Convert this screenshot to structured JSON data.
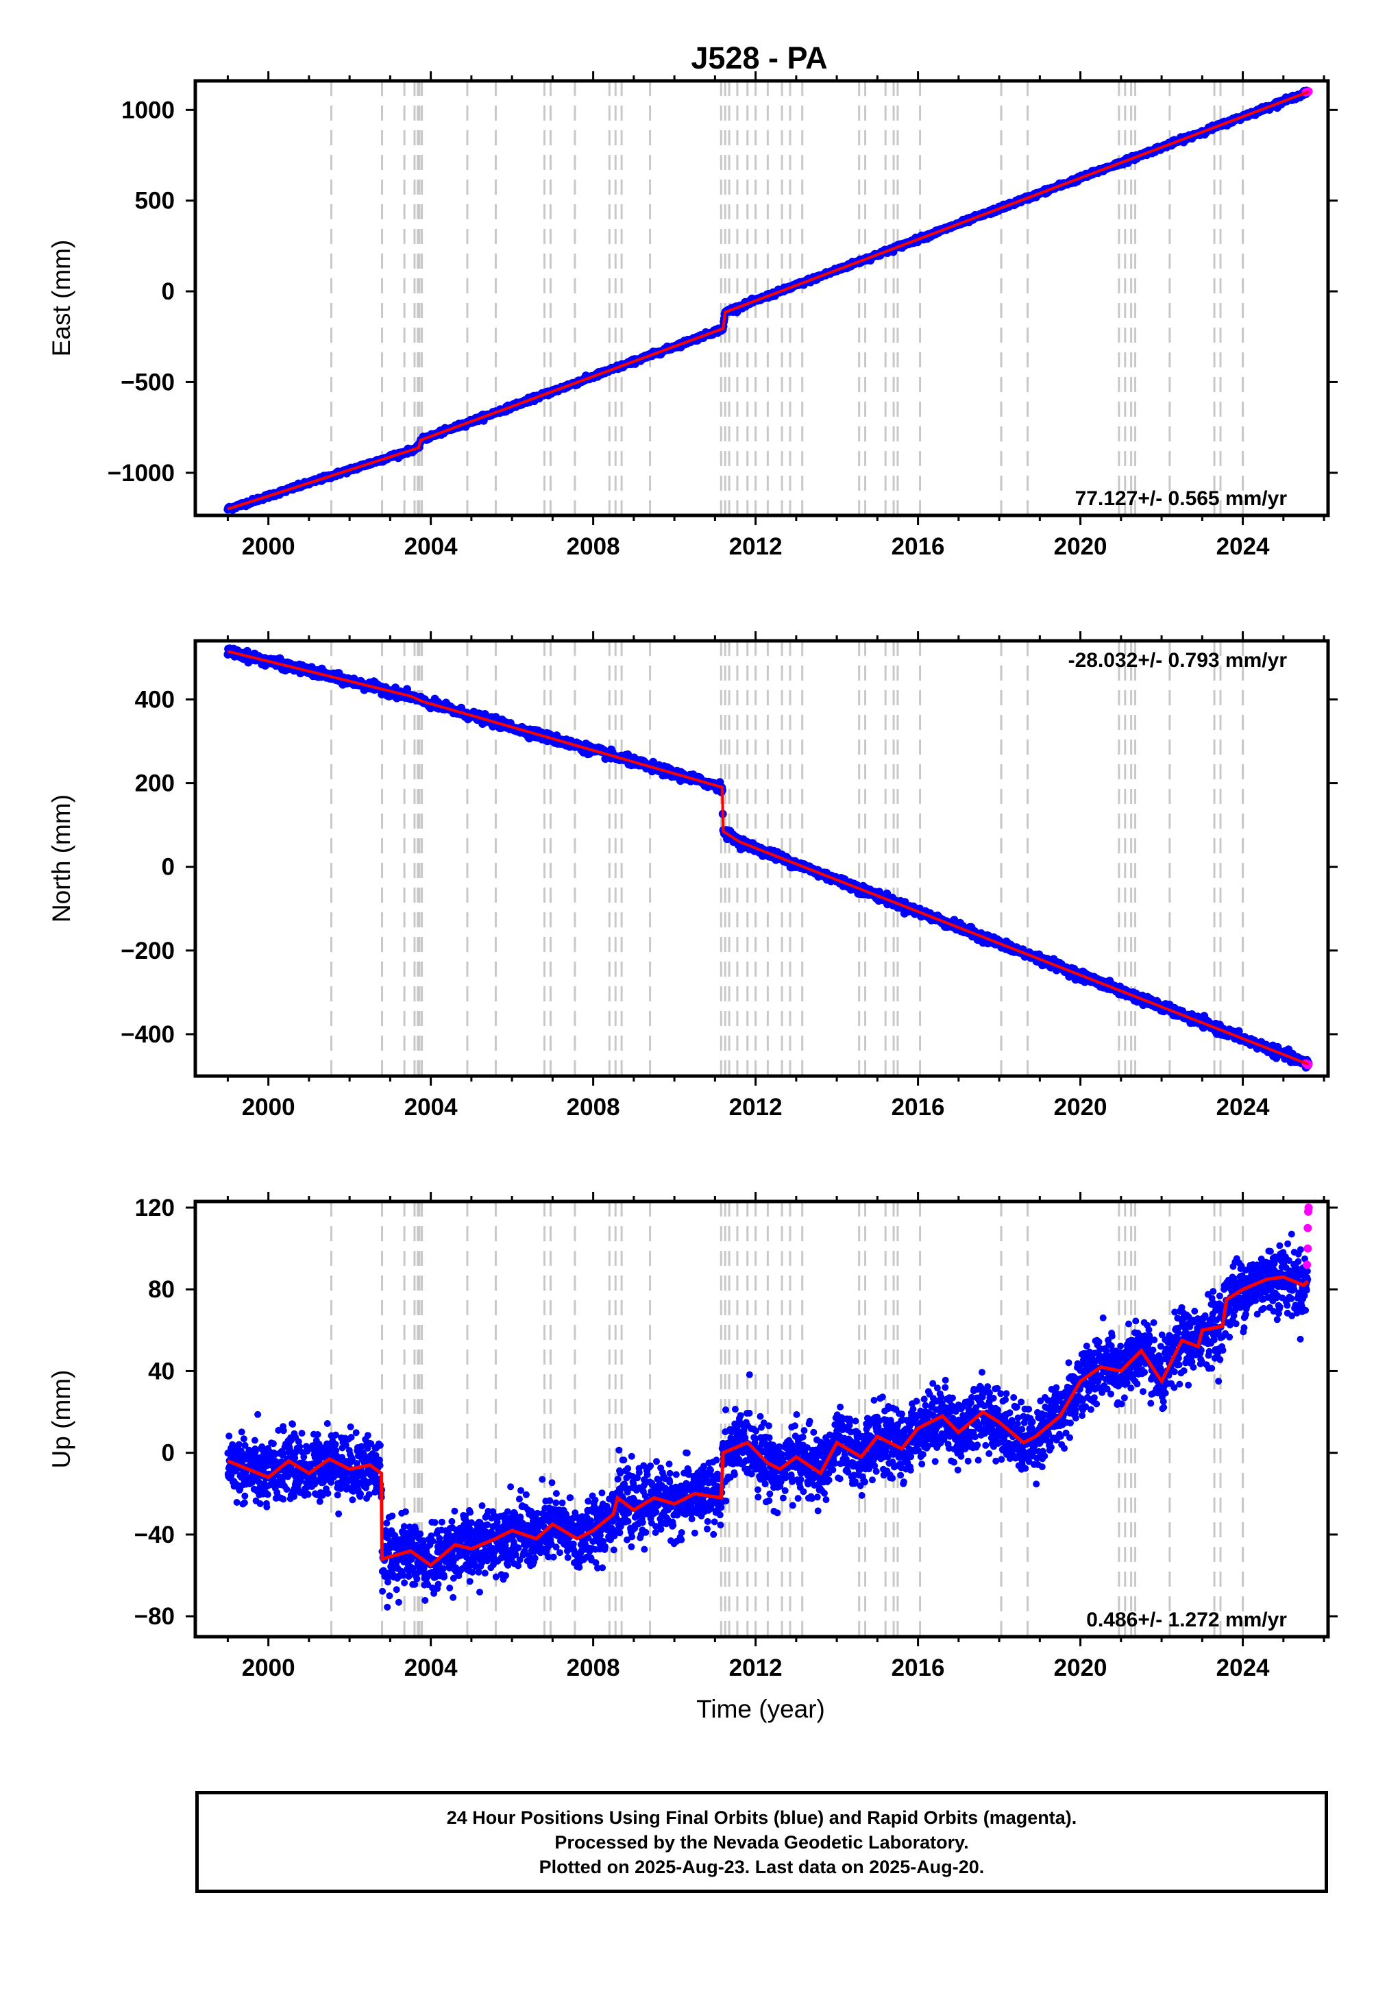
{
  "title": "J528 - PA",
  "xlabel": "Time (year)",
  "colors": {
    "final": "#0000ff",
    "rapid": "#ff00ff",
    "model": "#ff0000",
    "steps": "#c8c8c8"
  },
  "caption": {
    "line1": "24 Hour Positions Using Final Orbits (blue) and Rapid Orbits (magenta).",
    "line2": "Processed by the Nevada Geodetic Laboratory.",
    "line3": "Plotted on 2025-Aug-23. Last data on 2025-Aug-20."
  },
  "chart_data": [
    {
      "type": "scatter",
      "ylabel": "East (mm)",
      "xlim": [
        1998.2,
        2026.1
      ],
      "ylim": [
        -1235,
        1160
      ],
      "xticks": [
        2000,
        2004,
        2008,
        2012,
        2016,
        2020,
        2024
      ],
      "yticks": [
        -1000,
        -500,
        0,
        500,
        1000
      ],
      "rate_label": "77.127+/- 0.565 mm/yr",
      "rate_position": "bottom-right",
      "model": {
        "x": [
          1999.0,
          2003.7,
          2003.75,
          2011.2,
          2011.25,
          2025.62
        ],
        "y": [
          -1200,
          -862,
          -820,
          -205,
          -115,
          1100
        ]
      },
      "noise": 6,
      "rapid_points": [
        [
          2025.55,
          1097
        ],
        [
          2025.6,
          1100
        ],
        [
          2025.62,
          1102
        ]
      ]
    },
    {
      "type": "scatter",
      "ylabel": "North (mm)",
      "xlim": [
        1998.2,
        2026.1
      ],
      "ylim": [
        -500,
        540
      ],
      "xticks": [
        2000,
        2004,
        2008,
        2012,
        2016,
        2020,
        2024
      ],
      "yticks": [
        -400,
        -200,
        0,
        200,
        400
      ],
      "rate_label": "-28.032+/- 0.793 mm/yr",
      "rate_position": "top-right",
      "model": {
        "x": [
          1999.0,
          2003.5,
          2003.8,
          2011.18,
          2011.2,
          2011.6,
          2025.62
        ],
        "y": [
          515,
          408,
          395,
          190,
          85,
          60,
          -472
        ]
      },
      "noise": 5,
      "rapid_points": [
        [
          2025.55,
          -470
        ],
        [
          2025.6,
          -474
        ],
        [
          2025.62,
          -472
        ]
      ]
    },
    {
      "type": "scatter",
      "ylabel": "Up (mm)",
      "xlim": [
        1998.2,
        2026.1
      ],
      "ylim": [
        -90,
        123
      ],
      "xticks": [
        2000,
        2004,
        2008,
        2012,
        2016,
        2020,
        2024
      ],
      "yticks": [
        -80,
        -40,
        0,
        40,
        80,
        120
      ],
      "rate_label": "0.486+/- 1.272 mm/yr",
      "rate_position": "bottom-right",
      "model": {
        "x": [
          1999.0,
          1999.5,
          2000.0,
          2000.5,
          2001.0,
          2001.5,
          2002.0,
          2002.5,
          2002.78,
          2002.8,
          2003.5,
          2004.0,
          2004.6,
          2005.0,
          2005.6,
          2006.0,
          2006.6,
          2007.0,
          2007.6,
          2008.0,
          2008.5,
          2008.6,
          2009.0,
          2009.5,
          2010.0,
          2010.5,
          2011.15,
          2011.2,
          2011.8,
          2012.3,
          2012.6,
          2013.0,
          2013.6,
          2014.0,
          2014.6,
          2015.0,
          2015.6,
          2016.0,
          2016.6,
          2017.0,
          2017.6,
          2018.0,
          2018.6,
          2018.9,
          2019.5,
          2020.0,
          2020.5,
          2021.0,
          2021.5,
          2022.0,
          2022.5,
          2022.9,
          2023.0,
          2023.5,
          2023.6,
          2024.0,
          2024.6,
          2025.0,
          2025.5,
          2025.6
        ],
        "y": [
          -4,
          -8,
          -12,
          -4,
          -10,
          -3,
          -8,
          -6,
          -10,
          -52,
          -48,
          -55,
          -45,
          -47,
          -42,
          -38,
          -42,
          -35,
          -42,
          -38,
          -30,
          -22,
          -28,
          -22,
          -25,
          -20,
          -22,
          0,
          5,
          -5,
          -8,
          -2,
          -10,
          5,
          -2,
          8,
          2,
          12,
          18,
          10,
          20,
          15,
          5,
          8,
          18,
          35,
          42,
          40,
          50,
          35,
          55,
          52,
          60,
          62,
          75,
          80,
          85,
          86,
          82,
          84
        ]
      },
      "noise": 8,
      "rapid_points": [
        [
          2025.58,
          92
        ],
        [
          2025.6,
          100
        ],
        [
          2025.6,
          110
        ],
        [
          2025.61,
          118
        ],
        [
          2025.62,
          120
        ]
      ]
    }
  ],
  "step_dates": [
    2001.55,
    2002.8,
    2003.35,
    2003.6,
    2003.68,
    2003.72,
    2003.78,
    2004.9,
    2005.6,
    2006.8,
    2006.95,
    2007.55,
    2008.4,
    2008.55,
    2008.7,
    2009.4,
    2011.15,
    2011.25,
    2011.35,
    2011.55,
    2011.8,
    2012.0,
    2012.3,
    2012.65,
    2012.85,
    2013.15,
    2014.55,
    2014.7,
    2015.2,
    2015.4,
    2015.5,
    2016.05,
    2018.05,
    2018.7,
    2020.95,
    2021.1,
    2021.25,
    2021.35,
    2022.2,
    2023.3,
    2023.45,
    2024.0
  ]
}
